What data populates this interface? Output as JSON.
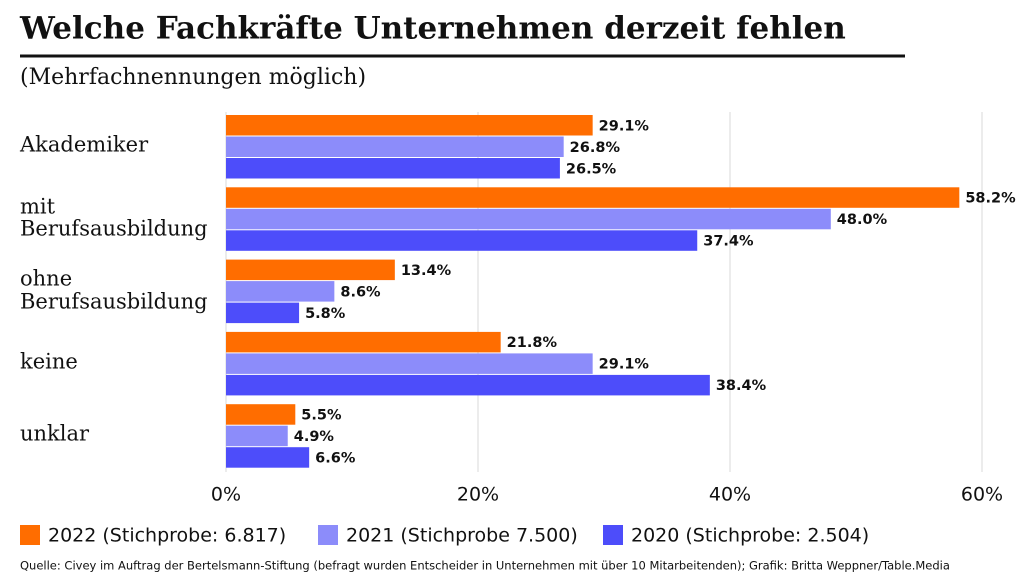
{
  "chart_data": {
    "type": "hbar",
    "title": "Welche Fachkräfte Unternehmen derzeit fehlen",
    "subtitle": "(Mehrfachnennungen möglich)",
    "categories": [
      "Akademiker",
      "mit Berufsausbildung",
      "ohne Berufsausbildung",
      "keine",
      "unklar"
    ],
    "series": [
      {
        "name": "2022 (Stichprobe: 6.817)",
        "color": "#ff6d00",
        "values": [
          29.1,
          58.2,
          13.4,
          21.8,
          5.5
        ],
        "value_labels": [
          "29.1%",
          "58.2%",
          "13.4%",
          "21.8%",
          "5.5%"
        ]
      },
      {
        "name": "2021 (Stichprobe 7.500)",
        "color": "#8c8cfa",
        "values": [
          26.8,
          48.0,
          8.6,
          29.1,
          4.9
        ],
        "value_labels": [
          "26.8%",
          "48.0%",
          "8.6%",
          "29.1%",
          "4.9%"
        ]
      },
      {
        "name": "2020 (Stichprobe: 2.504)",
        "color": "#4d4dfa",
        "values": [
          26.5,
          37.4,
          5.8,
          38.4,
          6.6
        ],
        "value_labels": [
          "26.5%",
          "37.4%",
          "5.8%",
          "38.4%",
          "6.6%"
        ]
      }
    ],
    "xlim": [
      0,
      60
    ],
    "xticks": [
      {
        "value": 0,
        "label": "0%"
      },
      {
        "value": 20,
        "label": "20%"
      },
      {
        "value": 40,
        "label": "40%"
      },
      {
        "value": 60,
        "label": "60%"
      }
    ],
    "grid": true,
    "legend": "bottom",
    "source": "Quelle: Civey im Auftrag der Bertelsmann-Stiftung (befragt wurden Entscheider in Unternehmen mit über 10 Mitarbeitenden); Grafik: Britta Weppner/Table.Media"
  }
}
